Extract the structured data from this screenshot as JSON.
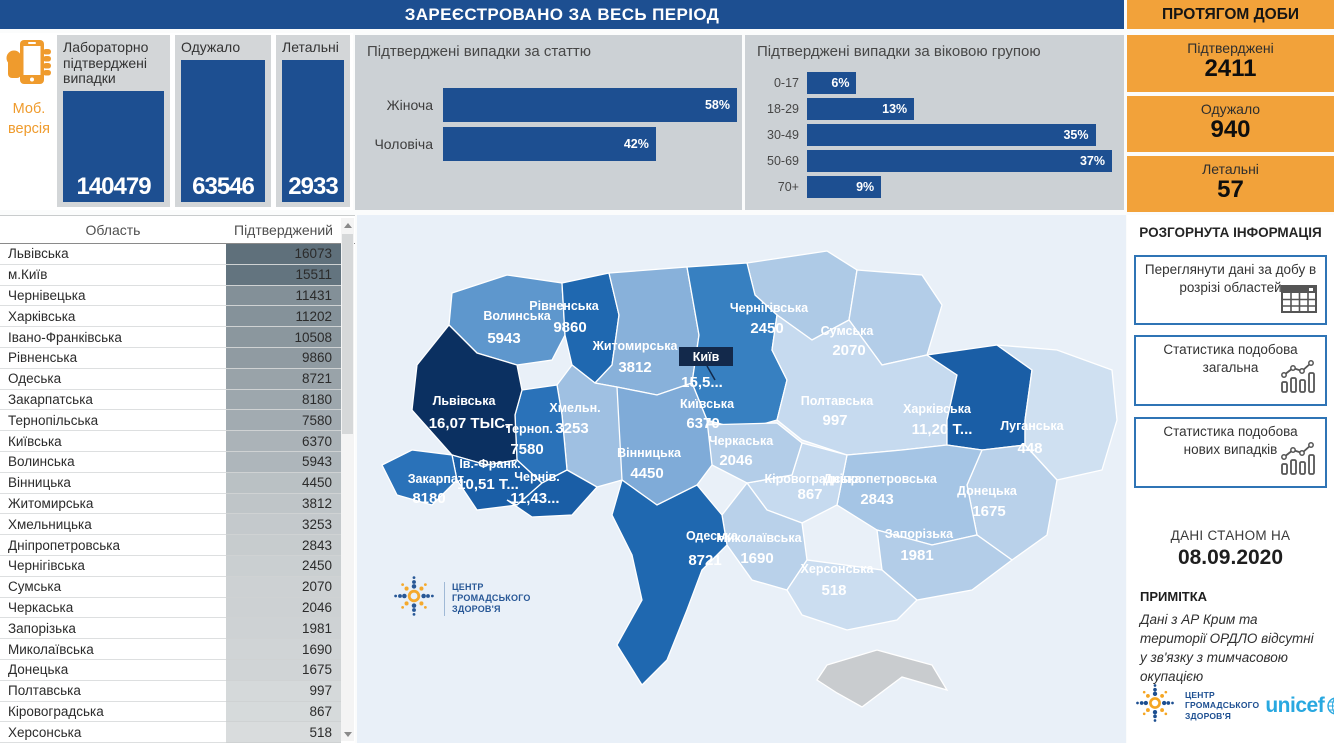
{
  "header": {
    "main_title": "ЗАРЕЄСТРОВАНО ЗА ВЕСЬ ПЕРІОД",
    "daily_title": "ПРОТЯГОМ ДОБИ"
  },
  "mobile": {
    "line1": "Моб.",
    "line2": "версія"
  },
  "total_cards": [
    {
      "label": "Лабораторно підтверджені випадки",
      "value": "140479"
    },
    {
      "label": "Одужало",
      "value": "63546"
    },
    {
      "label": "Летальні",
      "value": "2933"
    }
  ],
  "gender_chart": {
    "type": "bar",
    "title": "Підтверджені випадки за статтю",
    "axis_max": 58,
    "bars": [
      {
        "label": "Жіноча",
        "pct": 58,
        "pct_label": "58%"
      },
      {
        "label": "Чоловіча",
        "pct": 42,
        "pct_label": "42%"
      }
    ]
  },
  "age_chart": {
    "type": "bar",
    "title": "Підтверджені випадки за віковою групою",
    "axis_max": 37,
    "bars": [
      {
        "label": "0-17",
        "pct": 6,
        "pct_label": "6%"
      },
      {
        "label": "18-29",
        "pct": 13,
        "pct_label": "13%"
      },
      {
        "label": "30-49",
        "pct": 35,
        "pct_label": "35%"
      },
      {
        "label": "50-69",
        "pct": 37,
        "pct_label": "37%"
      },
      {
        "label": "70+",
        "pct": 9,
        "pct_label": "9%"
      }
    ]
  },
  "daily_cards": [
    {
      "label": "Підтверджені",
      "value": "2411"
    },
    {
      "label": "Одужало",
      "value": "940"
    },
    {
      "label": "Летальні",
      "value": "57"
    }
  ],
  "info": {
    "title": "РОЗГОРНУТА ІНФОРМАЦІЯ",
    "buttons": [
      {
        "label": "Переглянути дані за добу в розрізі областей",
        "icon": "table-icon"
      },
      {
        "label": "Статистика подобова загальна",
        "icon": "line-bar-chart-icon"
      },
      {
        "label": "Статистика подобова нових випадків",
        "icon": "line-bar-chart-icon"
      }
    ]
  },
  "as_of": {
    "label": "ДАНІ СТАНОМ НА",
    "date": "08.09.2020"
  },
  "note": {
    "title": "ПРИМІТКА",
    "text": "Дані з АР Крим та території ОРДЛО відсутні у зв'язку з тимчасовою окупацією"
  },
  "table": {
    "columns": [
      "Область",
      "Підтверджений"
    ],
    "rows": [
      {
        "region": "Львівська",
        "value": 16073
      },
      {
        "region": "м.Київ",
        "value": 15511
      },
      {
        "region": "Чернівецька",
        "value": 11431
      },
      {
        "region": "Харківська",
        "value": 11202
      },
      {
        "region": "Івано-Франківська",
        "value": 10508
      },
      {
        "region": "Рівненська",
        "value": 9860
      },
      {
        "region": "Одеська",
        "value": 8721
      },
      {
        "region": "Закарпатська",
        "value": 8180
      },
      {
        "region": "Тернопільська",
        "value": 7580
      },
      {
        "region": "Київська",
        "value": 6370
      },
      {
        "region": "Волинська",
        "value": 5943
      },
      {
        "region": "Вінницька",
        "value": 4450
      },
      {
        "region": "Житомирська",
        "value": 3812
      },
      {
        "region": "Хмельницька",
        "value": 3253
      },
      {
        "region": "Дніпропетровська",
        "value": 2843
      },
      {
        "region": "Чернігівська",
        "value": 2450
      },
      {
        "region": "Сумська",
        "value": 2070
      },
      {
        "region": "Черкаська",
        "value": 2046
      },
      {
        "region": "Запорізька",
        "value": 1981
      },
      {
        "region": "Миколаївська",
        "value": 1690
      },
      {
        "region": "Донецька",
        "value": 1675
      },
      {
        "region": "Полтавська",
        "value": 997
      },
      {
        "region": "Кіровоградська",
        "value": 867
      },
      {
        "region": "Херсонська",
        "value": 518
      }
    ]
  },
  "map": {
    "kyiv_city": {
      "box_label": "Київ",
      "value": "15,5...",
      "box_fill": "#13294b"
    },
    "regions": [
      {
        "id": "volyn",
        "name": "Волинська",
        "value": "5943",
        "fill": "#5e97cd"
      },
      {
        "id": "rivne",
        "name": "Рівненська",
        "value": "9860",
        "fill": "#1f68b0"
      },
      {
        "id": "zhytomyr",
        "name": "Житомирська",
        "value": "3812",
        "fill": "#88b1da"
      },
      {
        "id": "chernihiv",
        "name": "Чернігівська",
        "value": "2450",
        "fill": "#aecae6"
      },
      {
        "id": "sumy",
        "name": "Сумська",
        "value": "2070",
        "fill": "#b3cde8"
      },
      {
        "id": "kyiv_obl",
        "name": "Київська",
        "value": "6370",
        "fill": "#3780c1"
      },
      {
        "id": "poltava",
        "name": "Полтавська",
        "value": "997",
        "fill": "#c6daef"
      },
      {
        "id": "kharkiv",
        "name": "Харківська",
        "value": "11,20 Т...",
        "fill": "#1a5ea6"
      },
      {
        "id": "luhansk",
        "name": "Луганська",
        "value": "448",
        "fill": "#cfe0f1"
      },
      {
        "id": "donetsk",
        "name": "Донецька",
        "value": "1675",
        "fill": "#b9d1ea"
      },
      {
        "id": "dnipro",
        "name": "Дніпропетровська",
        "value": "2843",
        "fill": "#a5c5e5"
      },
      {
        "id": "zaporizhzhia",
        "name": "Запорізька",
        "value": "1981",
        "fill": "#b3cde8"
      },
      {
        "id": "kirovohrad",
        "name": "Кіровоградська",
        "value": "867",
        "fill": "#c6daef"
      },
      {
        "id": "cherkasy",
        "name": "Черкаська",
        "value": "2046",
        "fill": "#b3cde8"
      },
      {
        "id": "vinnytsia",
        "name": "Вінницька",
        "value": "4450",
        "fill": "#7fabd8"
      },
      {
        "id": "khmelnytskyi",
        "name": "Хмельн.",
        "value": "3253",
        "fill": "#9fc0e2"
      },
      {
        "id": "ternopil",
        "name": "Терноп.",
        "value": "7580",
        "fill": "#2a72b9"
      },
      {
        "id": "lviv",
        "name": "Львівська",
        "value": "16,07 ТЫС.",
        "fill": "#0b3061"
      },
      {
        "id": "ivano_frankivsk",
        "name": "Ів.-Франк.",
        "value": "10,51 Т...",
        "fill": "#1a5ea6"
      },
      {
        "id": "zakarpattia",
        "name": "Закарпат.",
        "value": "8180",
        "fill": "#2a72b9"
      },
      {
        "id": "chernivtsi",
        "name": "Чернів.",
        "value": "11,43...",
        "fill": "#1a5ea6"
      },
      {
        "id": "mykolaiv",
        "name": "Миколаївська",
        "value": "1690",
        "fill": "#b9d1ea"
      },
      {
        "id": "odesa",
        "name": "Одеська",
        "value": "8721",
        "fill": "#1f68b0"
      },
      {
        "id": "kherson",
        "name": "Херсонська",
        "value": "518",
        "fill": "#cbddf0"
      },
      {
        "id": "crimea",
        "name": "",
        "value": "",
        "fill": "#c9cccf"
      }
    ]
  },
  "logos": {
    "phc": [
      "ЦЕНТР",
      "ГРОМАДСЬКОГО",
      "ЗДОРОВ'Я"
    ],
    "unicef": "unicef"
  },
  "colors": {
    "accent_blue": "#1d4f91",
    "accent_orange": "#f2a23a",
    "table_shade_min": "#d9dcdd",
    "table_shade_max": "#5f707b"
  }
}
